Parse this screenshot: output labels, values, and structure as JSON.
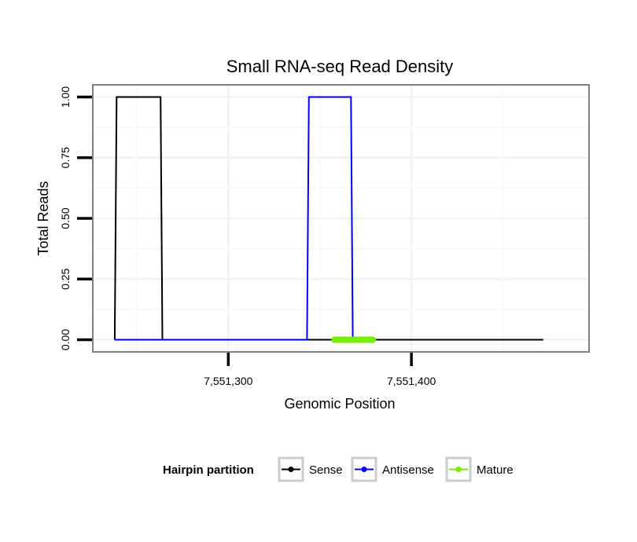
{
  "chart_data": {
    "type": "line",
    "title": "Small RNA-seq Read Density",
    "xlabel": "Genomic Position",
    "ylabel": "Total Reads",
    "xlim": [
      7551226,
      7551497
    ],
    "ylim": [
      -0.05,
      1.05
    ],
    "x_ticks": [
      7551300,
      7551400
    ],
    "x_tick_labels": [
      "7,551,300",
      "7,551,400"
    ],
    "y_ticks": [
      0,
      0.25,
      0.5,
      0.75,
      1.0
    ],
    "y_tick_labels": [
      "0.00",
      "0.25",
      "0.50",
      "0.75",
      "1.00"
    ],
    "grid": true,
    "legend": {
      "title": "Hairpin partition",
      "position": "bottom",
      "entries": [
        "Sense",
        "Antisense",
        "Mature"
      ]
    },
    "series": [
      {
        "name": "Sense",
        "color": "#000000",
        "x": [
          7551238,
          7551239,
          7551263,
          7551264,
          7551472
        ],
        "y": [
          0,
          1,
          1,
          0,
          0
        ]
      },
      {
        "name": "Antisense",
        "color": "#0000ff",
        "x": [
          7551238,
          7551263,
          7551264,
          7551343,
          7551344,
          7551367,
          7551368
        ],
        "y": [
          0,
          0,
          0,
          0,
          1,
          1,
          0
        ]
      },
      {
        "name": "Mature",
        "color": "#76ee00",
        "x": [
          7551358,
          7551379
        ],
        "y": [
          0,
          0
        ]
      }
    ]
  }
}
